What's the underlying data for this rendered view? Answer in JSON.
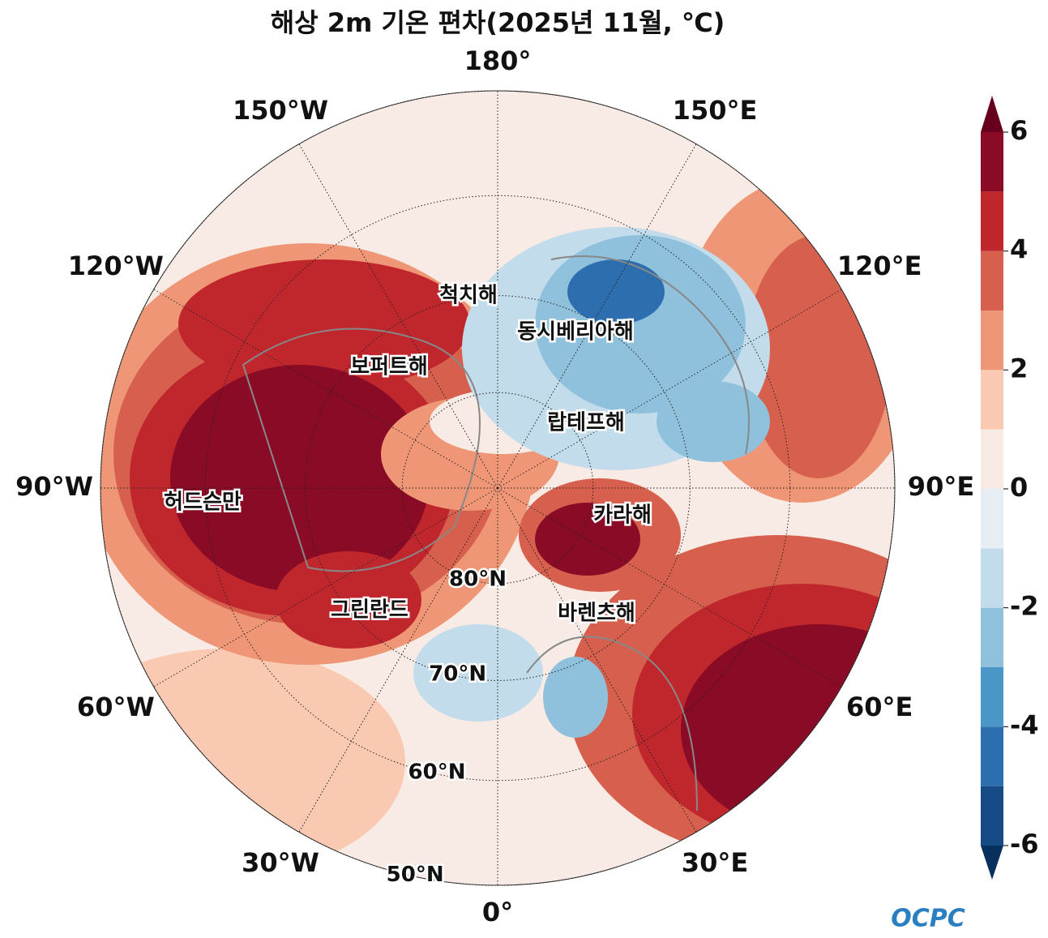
{
  "title": "해상 2m 기온 편차(2025년 11월, ℃)",
  "map": {
    "lon_ticks": [
      {
        "value": 180,
        "label": "180°"
      },
      {
        "value": -150,
        "label": "150°W"
      },
      {
        "value": -120,
        "label": "120°W"
      },
      {
        "value": -90,
        "label": "90°W"
      },
      {
        "value": -60,
        "label": "60°W"
      },
      {
        "value": -30,
        "label": "30°W"
      },
      {
        "value": 0,
        "label": "0°"
      },
      {
        "value": 30,
        "label": "30°E"
      },
      {
        "value": 60,
        "label": "60°E"
      },
      {
        "value": 90,
        "label": "90°E"
      },
      {
        "value": 120,
        "label": "120°E"
      },
      {
        "value": 150,
        "label": "150°E"
      }
    ],
    "lat_ticks": [
      {
        "value": 80,
        "label": "80°N"
      },
      {
        "value": 70,
        "label": "70°N"
      },
      {
        "value": 60,
        "label": "60°N"
      },
      {
        "value": 50,
        "label": "50°N"
      }
    ],
    "lat_lim": [
      50,
      90
    ],
    "regions": [
      "척치해",
      "동시베리아해",
      "보퍼트해",
      "랍테프해",
      "허드슨만",
      "카라해",
      "그린란드",
      "바렌츠해"
    ]
  },
  "colorbar": {
    "levels": [
      -6,
      -5,
      -4,
      -3,
      -2,
      -1,
      0,
      1,
      2,
      3,
      4,
      5,
      6
    ],
    "colors": [
      "#174b86",
      "#2d6fae",
      "#4a96c6",
      "#8fc1dc",
      "#c3dceb",
      "#e6eef3",
      "#f8ebe5",
      "#f9c9b1",
      "#ef9677",
      "#d6604d",
      "#c0272d",
      "#8a0b25"
    ],
    "extend_colors": [
      "#08305f",
      "#67001f"
    ],
    "ticks": [
      -6,
      -4,
      -2,
      0,
      2,
      4,
      6
    ]
  },
  "logo": "OCPC"
}
